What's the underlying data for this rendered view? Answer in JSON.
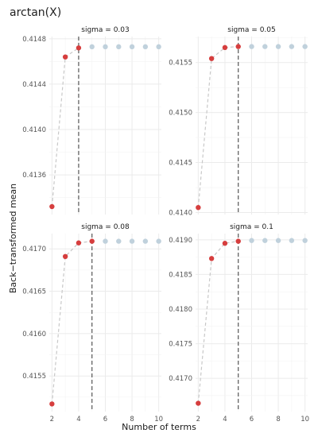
{
  "title": "arctan(X)",
  "xlabel": "Number of terms",
  "ylabel": "Back−transformed mean",
  "colors": {
    "converged": "#c0d1dc",
    "active": "#d63e3e",
    "line": "#c8c8c8",
    "vline": "#555555",
    "grid": "#ebebeb"
  },
  "chart_data": [
    {
      "type": "scatter",
      "strip_label": "sigma = 0.03",
      "x": [
        2,
        3,
        4,
        5,
        6,
        7,
        8,
        9,
        10
      ],
      "y": [
        0.41332,
        0.41464,
        0.41472,
        0.41473,
        0.41473,
        0.41473,
        0.41473,
        0.41473,
        0.41473
      ],
      "highlighted_terms": [
        2,
        3,
        4
      ],
      "selected_terms": 4,
      "xlim": [
        1.8,
        10.2
      ],
      "ylim": [
        0.41325,
        0.41482
      ],
      "y_ticks": [
        "0.4136",
        "0.4140",
        "0.4144",
        "0.4148"
      ],
      "x_ticks": []
    },
    {
      "type": "scatter",
      "strip_label": "sigma = 0.05",
      "x": [
        2,
        3,
        4,
        5,
        6,
        7,
        8,
        9,
        10
      ],
      "y": [
        0.41405,
        0.41554,
        0.41565,
        0.41566,
        0.41566,
        0.41566,
        0.41566,
        0.41566,
        0.41566
      ],
      "highlighted_terms": [
        2,
        3,
        4,
        5
      ],
      "selected_terms": 5,
      "xlim": [
        1.8,
        10.2
      ],
      "ylim": [
        0.41398,
        0.41576
      ],
      "y_ticks": [
        "0.4140",
        "0.4145",
        "0.4150",
        "0.4155"
      ],
      "x_ticks": []
    },
    {
      "type": "scatter",
      "strip_label": "sigma = 0.08",
      "x": [
        2,
        3,
        4,
        5,
        6,
        7,
        8,
        9,
        10
      ],
      "y": [
        0.41517,
        0.41691,
        0.41707,
        0.41709,
        0.41709,
        0.41709,
        0.41709,
        0.41709,
        0.41709
      ],
      "highlighted_terms": [
        2,
        3,
        4,
        5
      ],
      "selected_terms": 5,
      "xlim": [
        1.8,
        10.2
      ],
      "ylim": [
        0.41508,
        0.41718
      ],
      "y_ticks": [
        "0.4155",
        "0.4160",
        "0.4165",
        "0.4170"
      ],
      "x_ticks": [
        "2",
        "4",
        "6",
        "8",
        "10"
      ]
    },
    {
      "type": "scatter",
      "strip_label": "sigma = 0.1",
      "x": [
        2,
        3,
        4,
        5,
        6,
        7,
        8,
        9,
        10
      ],
      "y": [
        0.41664,
        0.41873,
        0.41895,
        0.41898,
        0.41899,
        0.41899,
        0.41899,
        0.41899,
        0.41899
      ],
      "highlighted_terms": [
        2,
        3,
        4,
        5
      ],
      "selected_terms": 5,
      "xlim": [
        1.8,
        10.2
      ],
      "ylim": [
        0.41652,
        0.41909
      ],
      "y_ticks": [
        "0.4170",
        "0.4175",
        "0.4180",
        "0.4185",
        "0.4190"
      ],
      "x_ticks": [
        "2",
        "4",
        "6",
        "8",
        "10"
      ]
    }
  ]
}
